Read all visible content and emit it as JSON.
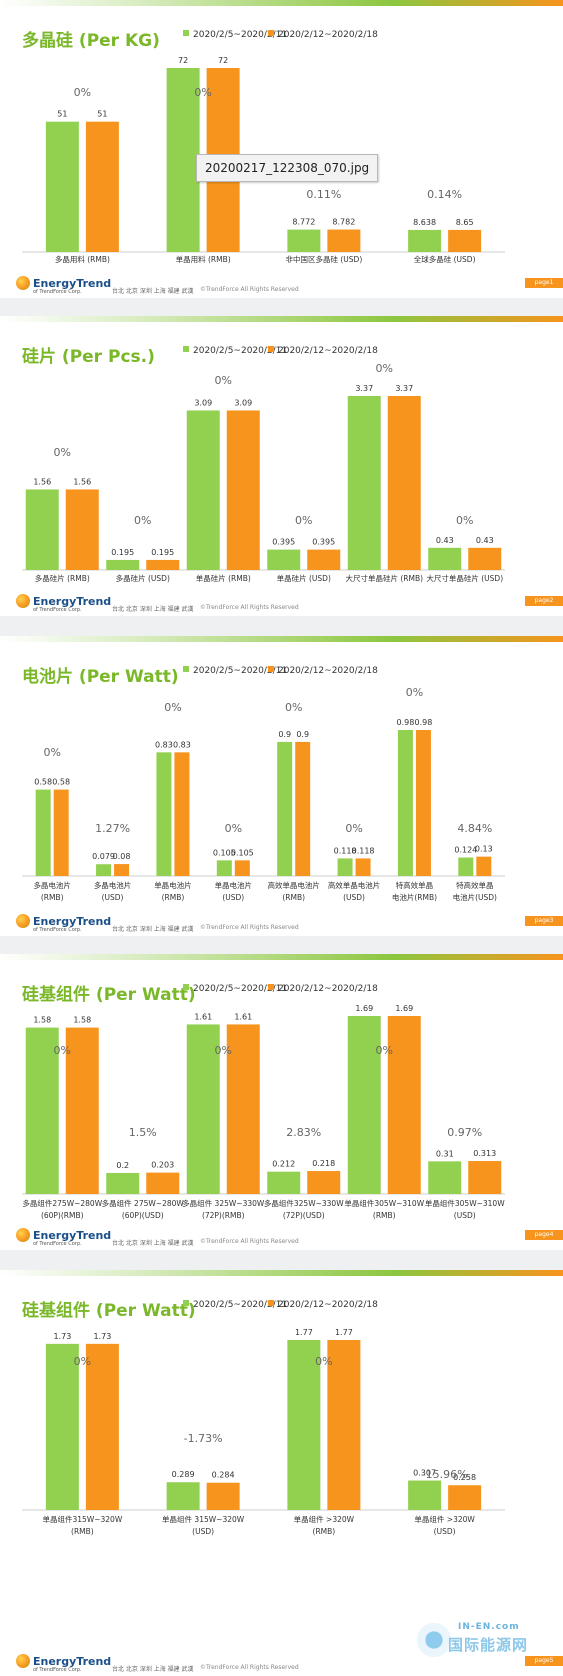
{
  "legend": {
    "s1": "2020/2/5~2020/2/11",
    "s2": "2020/2/12~2020/2/18"
  },
  "colors": {
    "s1": "#92d050",
    "s2": "#f7941d",
    "title": "#7ab829"
  },
  "footer": {
    "brand": "EnergyTrend",
    "brand_sub": "of TrendForce Corp.",
    "cities": "台北 北京 深圳 上海 福建 武漢",
    "copyright": "©TrendForce All Rights Reserved"
  },
  "tooltip": "20200217_122308_070.jpg",
  "watermark": {
    "top": "IN-EN.com",
    "main": "国际能源网"
  },
  "slides": [
    {
      "title": "多晶硅 (Per KG)",
      "page": "page1"
    },
    {
      "title": "硅片 (Per Pcs.)",
      "page": "page2"
    },
    {
      "title": "电池片 (Per Watt)",
      "page": "page3"
    },
    {
      "title": "硅基组件 (Per Watt)",
      "page": "page4"
    },
    {
      "title": "硅基组件 (Per Watt)",
      "page": "page5"
    }
  ],
  "chart_data": [
    {
      "type": "bar",
      "title": "多晶硅 (Per KG)",
      "categories": [
        [
          "多晶用料 (RMB)"
        ],
        [
          "单晶用料 (RMB)"
        ],
        [
          "非中国区多晶硅 (USD)"
        ],
        [
          "全球多晶硅 (USD)"
        ]
      ],
      "series": [
        {
          "name": "2020/2/5~2020/2/11",
          "values": [
            51,
            72,
            8.772,
            8.638
          ]
        },
        {
          "name": "2020/2/12~2020/2/18",
          "values": [
            51,
            72,
            8.782,
            8.65
          ]
        }
      ],
      "labels_s1": [
        "51",
        "72",
        "8.772",
        "8.638"
      ],
      "labels_s2": [
        "51",
        "72",
        "8.782",
        "8.65"
      ],
      "changes": [
        "0%",
        "0%",
        "0.11%",
        "0.14%"
      ],
      "ylim": [
        0,
        72
      ]
    },
    {
      "type": "bar",
      "title": "硅片 (Per Pcs.)",
      "categories": [
        [
          "多晶硅片 (RMB)"
        ],
        [
          "多晶硅片 (USD)"
        ],
        [
          "单晶硅片 (RMB)"
        ],
        [
          "单晶硅片 (USD)"
        ],
        [
          "大尺寸单晶硅片 (RMB)"
        ],
        [
          "大尺寸单晶硅片 (USD)"
        ]
      ],
      "series": [
        {
          "name": "2020/2/5~2020/2/11",
          "values": [
            1.56,
            0.195,
            3.09,
            0.395,
            3.37,
            0.43
          ]
        },
        {
          "name": "2020/2/12~2020/2/18",
          "values": [
            1.56,
            0.195,
            3.09,
            0.395,
            3.37,
            0.43
          ]
        }
      ],
      "labels_s1": [
        "1.56",
        "0.195",
        "3.09",
        "0.395",
        "3.37",
        "0.43"
      ],
      "labels_s2": [
        "1.56",
        "0.195",
        "3.09",
        "0.395",
        "3.37",
        "0.43"
      ],
      "changes": [
        "0%",
        "0%",
        "0%",
        "0%",
        "0%",
        "0%"
      ],
      "ylim": [
        0,
        3.37
      ]
    },
    {
      "type": "bar",
      "title": "电池片 (Per Watt)",
      "categories": [
        [
          "多晶电池片",
          "(RMB)"
        ],
        [
          "多晶电池片",
          "(USD)"
        ],
        [
          "单晶电池片",
          "(RMB)"
        ],
        [
          "单晶电池片",
          "(USD)"
        ],
        [
          "高效单晶电池片",
          "(RMB)"
        ],
        [
          "高效单晶电池片",
          "(USD)"
        ],
        [
          "特高效单晶",
          "电池片(RMB)"
        ],
        [
          "特高效单晶",
          "电池片(USD)"
        ]
      ],
      "series": [
        {
          "name": "2020/2/5~2020/2/11",
          "values": [
            0.58,
            0.079,
            0.83,
            0.105,
            0.9,
            0.118,
            0.98,
            0.124
          ]
        },
        {
          "name": "2020/2/12~2020/2/18",
          "values": [
            0.58,
            0.08,
            0.83,
            0.105,
            0.9,
            0.118,
            0.98,
            0.13
          ]
        }
      ],
      "labels_s1": [
        "0.58",
        "0.079",
        "0.83",
        "0.105",
        "0.9",
        "0.118",
        "0.98",
        "0.124"
      ],
      "labels_s2": [
        "0.58",
        "0.08",
        "0.83",
        "0.105",
        "0.9",
        "0.118",
        "0.98",
        "0.13"
      ],
      "changes": [
        "0%",
        "1.27%",
        "0%",
        "0%",
        "0%",
        "0%",
        "0%",
        "4.84%"
      ],
      "ylim": [
        0,
        0.98
      ]
    },
    {
      "type": "bar",
      "title": "硅基组件 (Per Watt)",
      "categories": [
        [
          "多晶组件275W~280W",
          "(60P)(RMB)"
        ],
        [
          "多晶组件 275W~280W",
          "(60P)(USD)"
        ],
        [
          "多晶组件 325W~330W",
          "(72P)(RMB)"
        ],
        [
          "多晶组件325W~330W",
          "(72P)(USD)"
        ],
        [
          "单晶组件305W~310W",
          "(RMB)"
        ],
        [
          "单晶组件305W~310W",
          "(USD)"
        ]
      ],
      "series": [
        {
          "name": "2020/2/5~2020/2/11",
          "values": [
            1.58,
            0.2,
            1.61,
            0.212,
            1.69,
            0.31
          ]
        },
        {
          "name": "2020/2/12~2020/2/18",
          "values": [
            1.58,
            0.203,
            1.61,
            0.218,
            1.69,
            0.313
          ]
        }
      ],
      "labels_s1": [
        "1.58",
        "0.2",
        "1.61",
        "0.212",
        "1.69",
        "0.31"
      ],
      "labels_s2": [
        "1.58",
        "0.203",
        "1.61",
        "0.218",
        "1.69",
        "0.313"
      ],
      "changes": [
        "0%",
        "1.5%",
        "0%",
        "2.83%",
        "0%",
        "0.97%"
      ],
      "ylim": [
        0,
        1.69
      ]
    },
    {
      "type": "bar",
      "title": "硅基组件 (Per Watt)",
      "categories": [
        [
          "单晶组件315W~320W",
          "(RMB)"
        ],
        [
          "单晶组件 315W~320W",
          "(USD)"
        ],
        [
          "单晶组件 >320W",
          "(RMB)"
        ],
        [
          "单晶组件 >320W",
          "(USD)"
        ]
      ],
      "series": [
        {
          "name": "2020/2/5~2020/2/11",
          "values": [
            1.73,
            0.289,
            1.77,
            0.307
          ]
        },
        {
          "name": "2020/2/12~2020/2/18",
          "values": [
            1.73,
            0.284,
            1.77,
            0.258
          ]
        }
      ],
      "labels_s1": [
        "1.73",
        "0.289",
        "1.77",
        "0.307"
      ],
      "labels_s2": [
        "1.73",
        "0.284",
        "1.77",
        "0.258"
      ],
      "changes": [
        "0%",
        "-1.73%",
        "0%",
        "-15.96%"
      ],
      "ylim": [
        0,
        1.77
      ]
    }
  ]
}
